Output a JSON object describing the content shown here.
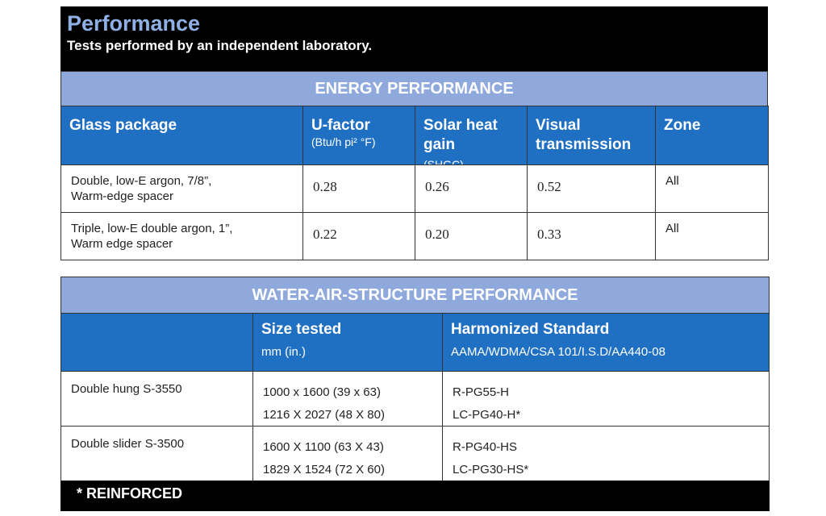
{
  "header": {
    "title": "Performance",
    "subtitle": "Tests performed by an independent laboratory."
  },
  "energy_table": {
    "title": "ENERGY PERFORMANCE",
    "columns": [
      {
        "label": "Glass package"
      },
      {
        "label": "U-factor",
        "unit": "(Btu/h pi² °F)"
      },
      {
        "label": "Solar heat gain",
        "unit": "(SHGC)"
      },
      {
        "label": "Visual transmission"
      },
      {
        "label": "Zone"
      }
    ],
    "rows": [
      [
        [
          "Double, low-E argon, 7/8”,",
          "Warm-edge spacer"
        ],
        "0.28",
        "0.26",
        "0.52",
        "All"
      ],
      [
        [
          "Triple, low-E double argon, 1”,",
          "Warm edge spacer"
        ],
        "0.22",
        "0.20",
        "0.33",
        "All"
      ]
    ]
  },
  "water_table": {
    "title": "WATER-AIR-STRUCTURE PERFORMANCE",
    "columns": [
      {
        "label": "Size tested",
        "unit": "mm (in.)"
      },
      {
        "label": "Harmonized Standard",
        "unit": "AAMA/WDMA/CSA 101/I.S.D/AA440-08"
      }
    ],
    "rows": [
      {
        "name": "Double hung S-3550",
        "sizes": [
          "1000 x 1600 (39 x 63)",
          "1216 X 2027 (48 X 80)"
        ],
        "ratings": [
          "R-PG55-H",
          "LC-PG40-H*"
        ]
      },
      {
        "name": "Double slider S-3500",
        "sizes": [
          "1600 X 1100 (63 X 43)",
          "1829 X 1524 (72 X 60)"
        ],
        "ratings": [
          "R-PG40-HS",
          "LC-PG30-HS*"
        ]
      }
    ]
  },
  "footer": "* REINFORCED"
}
